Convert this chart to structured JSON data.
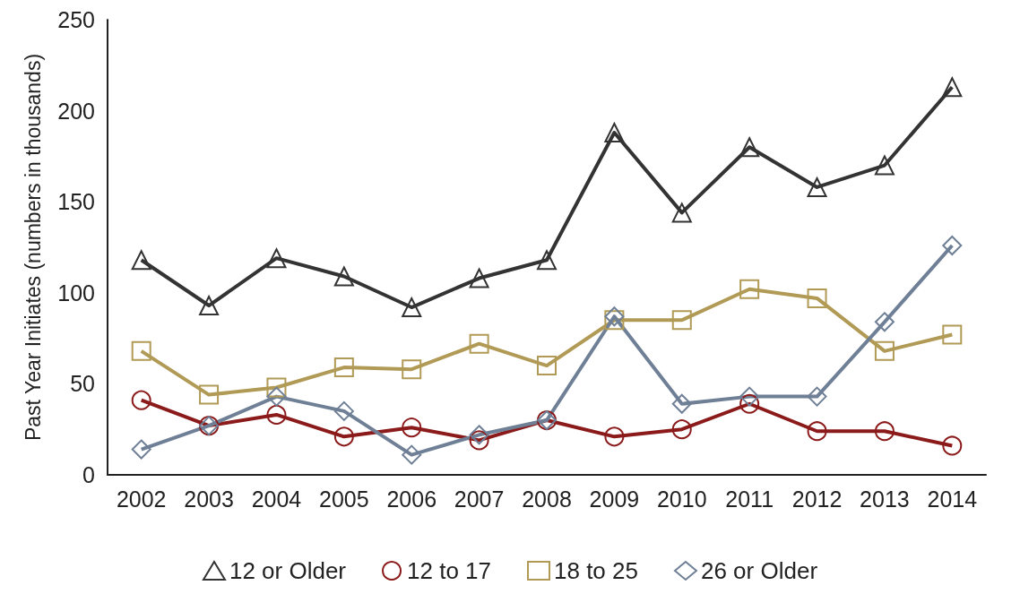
{
  "chart_data": {
    "type": "line",
    "ylabel": "Past Year Initiates (numbers in thousands)",
    "categories": [
      "2002",
      "2003",
      "2004",
      "2005",
      "2006",
      "2007",
      "2008",
      "2009",
      "2010",
      "2011",
      "2012",
      "2013",
      "2014"
    ],
    "series": [
      {
        "name": "12 or Older",
        "color": "#333333",
        "marker": "triangle",
        "values": [
          118,
          93,
          119,
          109,
          92,
          108,
          118,
          188,
          144,
          180,
          158,
          170,
          213
        ]
      },
      {
        "name": "12 to 17",
        "color": "#8b1a1a",
        "marker": "circle",
        "values": [
          41,
          27,
          33,
          21,
          26,
          19,
          30,
          21,
          25,
          39,
          24,
          24,
          16
        ]
      },
      {
        "name": "18 to 25",
        "color": "#b09a55",
        "marker": "square",
        "values": [
          68,
          44,
          48,
          59,
          58,
          72,
          60,
          85,
          85,
          102,
          97,
          68,
          77
        ]
      },
      {
        "name": "26 or Older",
        "color": "#6e7f96",
        "marker": "diamond",
        "values": [
          14,
          27,
          43,
          35,
          11,
          22,
          30,
          87,
          39,
          43,
          43,
          84,
          126
        ]
      }
    ],
    "ylim": [
      0,
      250
    ],
    "yticks": [
      0,
      50,
      100,
      150,
      200,
      250
    ],
    "grid": false,
    "legend": "bottom",
    "line_style": "solid"
  }
}
